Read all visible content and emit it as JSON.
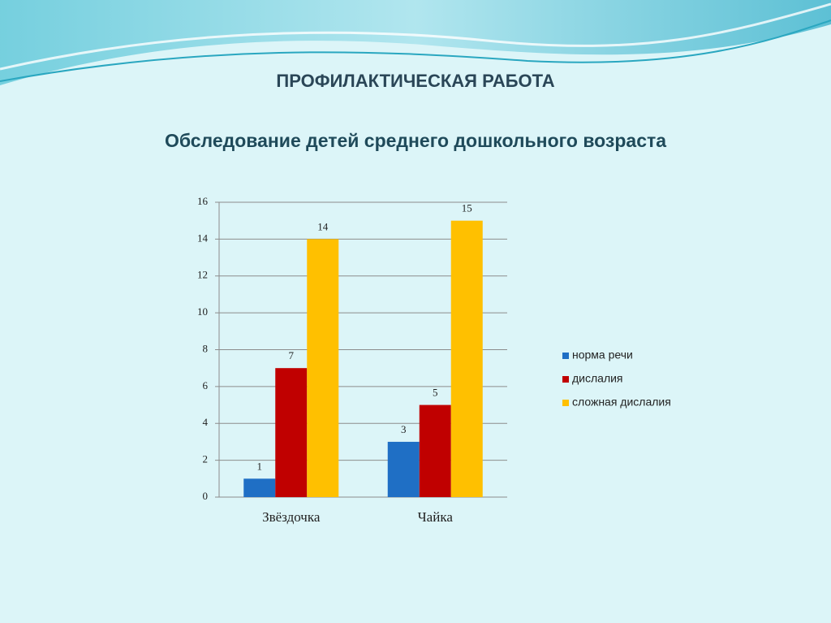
{
  "chart_data": {
    "type": "bar",
    "title": "ПРОФИЛАКТИЧЕСКАЯ РАБОТА",
    "subtitle": "Обследование детей среднего дошкольного возраста",
    "categories": [
      "Звёздочка",
      "Чайка"
    ],
    "series": [
      {
        "name": "норма речи",
        "color": "#1f6fc5",
        "values": [
          1,
          3
        ]
      },
      {
        "name": "дислалия",
        "color": "#c00000",
        "values": [
          7,
          5
        ]
      },
      {
        "name": "сложная дислалия",
        "color": "#ffc000",
        "values": [
          14,
          15
        ]
      }
    ],
    "ylim": [
      0,
      16
    ],
    "yticks": [
      0,
      2,
      4,
      6,
      8,
      10,
      12,
      14,
      16
    ],
    "grid": true,
    "legend": "right"
  }
}
